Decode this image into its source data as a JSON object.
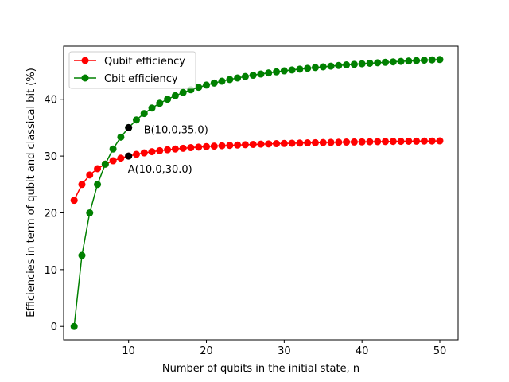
{
  "chart_data": {
    "type": "line",
    "title": "",
    "xlabel": "Number of qubits in the initial state, n",
    "ylabel": "Efficiencies in term of qubit and classical bit (%)",
    "xlim": [
      1.65,
      52.35
    ],
    "ylim": [
      -2.35,
      49.35
    ],
    "xticks": [
      10,
      20,
      30,
      40,
      50
    ],
    "yticks": [
      0,
      10,
      20,
      30,
      40
    ],
    "grid": false,
    "legend_position": "top-left",
    "x": [
      3,
      4,
      5,
      6,
      7,
      8,
      9,
      10,
      11,
      12,
      13,
      14,
      15,
      16,
      17,
      18,
      19,
      20,
      21,
      22,
      23,
      24,
      25,
      26,
      27,
      28,
      29,
      30,
      31,
      32,
      33,
      34,
      35,
      36,
      37,
      38,
      39,
      40,
      41,
      42,
      43,
      44,
      45,
      46,
      47,
      48,
      49,
      50
    ],
    "series": [
      {
        "name": "Qubit efficiency",
        "color": "#ff0000",
        "values": [
          22.22,
          25.0,
          26.67,
          27.78,
          28.57,
          29.17,
          29.63,
          30.0,
          30.3,
          30.56,
          30.77,
          30.95,
          31.11,
          31.25,
          31.37,
          31.48,
          31.58,
          31.67,
          31.75,
          31.82,
          31.88,
          31.94,
          32.0,
          32.05,
          32.1,
          32.14,
          32.18,
          32.22,
          32.26,
          32.29,
          32.32,
          32.35,
          32.38,
          32.41,
          32.43,
          32.46,
          32.48,
          32.5,
          32.52,
          32.54,
          32.56,
          32.58,
          32.59,
          32.61,
          32.62,
          32.64,
          32.65,
          32.67
        ]
      },
      {
        "name": "Cbit efficiency",
        "color": "#008000",
        "values": [
          0.0,
          12.5,
          20.0,
          25.0,
          28.57,
          31.25,
          33.33,
          35.0,
          36.36,
          37.5,
          38.46,
          39.29,
          40.0,
          40.62,
          41.18,
          41.67,
          42.11,
          42.5,
          42.86,
          43.18,
          43.48,
          43.75,
          44.0,
          44.23,
          44.44,
          44.64,
          44.83,
          45.0,
          45.16,
          45.31,
          45.45,
          45.59,
          45.71,
          45.83,
          45.95,
          46.05,
          46.15,
          46.25,
          46.34,
          46.43,
          46.51,
          46.59,
          46.67,
          46.74,
          46.81,
          46.88,
          46.94,
          47.0
        ]
      }
    ],
    "annotations": [
      {
        "label": "A(10.0,30.0)",
        "x": 10,
        "y": 30,
        "color": "#000000"
      },
      {
        "label": "B(10.0,35.0)",
        "x": 10,
        "y": 35,
        "color": "#000000"
      }
    ]
  }
}
